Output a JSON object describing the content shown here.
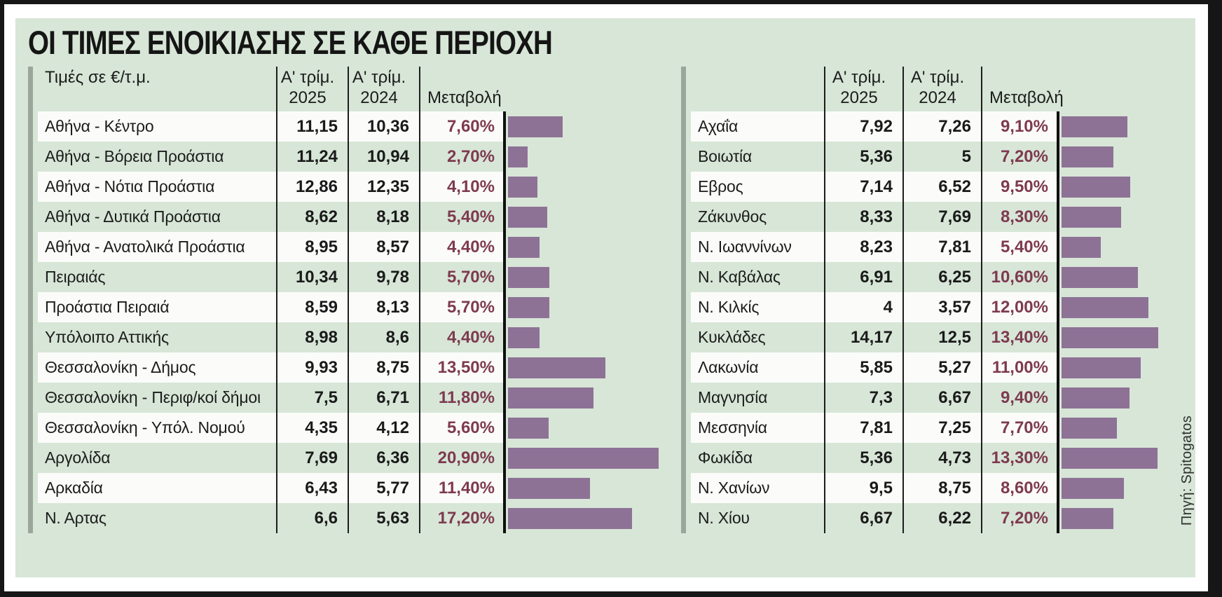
{
  "page": {
    "title": "ΟΙ ΤΙΜΕΣ ΕΝΟΙΚΙΑΣΗΣ ΣΕ ΚΑΘΕ ΠΕΡΙΟΧΗ",
    "units_label": "Τιμές σε €/τ.μ.",
    "col_q2025_line1": "Α' τρίμ.",
    "col_q2025_line2": "2025",
    "col_q2024_line1": "Α' τρίμ.",
    "col_q2024_line2": "2024",
    "col_change": "Μεταβολή",
    "source": "Πηγή: Spitogatos"
  },
  "colors": {
    "panel_green": "#d7e6d7",
    "row_white": "#fbfcfa",
    "bar_mauve": "#8e7296",
    "change_text": "#7e3a50",
    "accent_gray": "#9ba69b",
    "divider_black": "#1d1d1d",
    "frame_black": "#161616"
  },
  "left_table": {
    "rows": [
      {
        "region": "Αθήνα - Κέντρο",
        "q2025": "11,15",
        "q2024": "10,36",
        "change": "7,60%",
        "change_pct": 7.6
      },
      {
        "region": "Αθήνα - Βόρεια Προάστια",
        "q2025": "11,24",
        "q2024": "10,94",
        "change": "2,70%",
        "change_pct": 2.7
      },
      {
        "region": "Αθήνα - Νότια Προάστια",
        "q2025": "12,86",
        "q2024": "12,35",
        "change": "4,10%",
        "change_pct": 4.1
      },
      {
        "region": "Αθήνα - Δυτικά Προάστια",
        "q2025": "8,62",
        "q2024": "8,18",
        "change": "5,40%",
        "change_pct": 5.4
      },
      {
        "region": "Αθήνα - Ανατολικά Προάστια",
        "q2025": "8,95",
        "q2024": "8,57",
        "change": "4,40%",
        "change_pct": 4.4
      },
      {
        "region": "Πειραιάς",
        "q2025": "10,34",
        "q2024": "9,78",
        "change": "5,70%",
        "change_pct": 5.7
      },
      {
        "region": "Προάστια Πειραιά",
        "q2025": "8,59",
        "q2024": "8,13",
        "change": "5,70%",
        "change_pct": 5.7
      },
      {
        "region": "Υπόλοιπο Αττικής",
        "q2025": "8,98",
        "q2024": "8,6",
        "change": "4,40%",
        "change_pct": 4.4
      },
      {
        "region": "Θεσσαλονίκη - Δήμος",
        "q2025": "9,93",
        "q2024": "8,75",
        "change": "13,50%",
        "change_pct": 13.5
      },
      {
        "region": "Θεσσαλονίκη - Περιφ/κοί δήμοι",
        "q2025": "7,5",
        "q2024": "6,71",
        "change": "11,80%",
        "change_pct": 11.8
      },
      {
        "region": "Θεσσαλονίκη - Υπόλ. Νομού",
        "q2025": "4,35",
        "q2024": "4,12",
        "change": "5,60%",
        "change_pct": 5.6
      },
      {
        "region": "Αργολίδα",
        "q2025": "7,69",
        "q2024": "6,36",
        "change": "20,90%",
        "change_pct": 20.9
      },
      {
        "region": "Αρκαδία",
        "q2025": "6,43",
        "q2024": "5,77",
        "change": "11,40%",
        "change_pct": 11.4
      },
      {
        "region": "Ν. Αρτας",
        "q2025": "6,6",
        "q2024": "5,63",
        "change": "17,20%",
        "change_pct": 17.2
      }
    ]
  },
  "right_table": {
    "rows": [
      {
        "region": "Αχαΐα",
        "q2025": "7,92",
        "q2024": "7,26",
        "change": "9,10%",
        "change_pct": 9.1
      },
      {
        "region": "Βοιωτία",
        "q2025": "5,36",
        "q2024": "5",
        "change": "7,20%",
        "change_pct": 7.2
      },
      {
        "region": "Εβρος",
        "q2025": "7,14",
        "q2024": "6,52",
        "change": "9,50%",
        "change_pct": 9.5
      },
      {
        "region": "Ζάκυνθος",
        "q2025": "8,33",
        "q2024": "7,69",
        "change": "8,30%",
        "change_pct": 8.3
      },
      {
        "region": "Ν. Ιωαννίνων",
        "q2025": "8,23",
        "q2024": "7,81",
        "change": "5,40%",
        "change_pct": 5.4
      },
      {
        "region": "Ν. Καβάλας",
        "q2025": "6,91",
        "q2024": "6,25",
        "change": "10,60%",
        "change_pct": 10.6
      },
      {
        "region": "Ν. Κιλκίς",
        "q2025": "4",
        "q2024": "3,57",
        "change": "12,00%",
        "change_pct": 12.0
      },
      {
        "region": "Κυκλάδες",
        "q2025": "14,17",
        "q2024": "12,5",
        "change": "13,40%",
        "change_pct": 13.4
      },
      {
        "region": "Λακωνία",
        "q2025": "5,85",
        "q2024": "5,27",
        "change": "11,00%",
        "change_pct": 11.0
      },
      {
        "region": "Μαγνησία",
        "q2025": "7,3",
        "q2024": "6,67",
        "change": "9,40%",
        "change_pct": 9.4
      },
      {
        "region": "Μεσσηνία",
        "q2025": "7,81",
        "q2024": "7,25",
        "change": "7,70%",
        "change_pct": 7.7
      },
      {
        "region": "Φωκίδα",
        "q2025": "5,36",
        "q2024": "4,73",
        "change": "13,30%",
        "change_pct": 13.3
      },
      {
        "region": "Ν. Χανίων",
        "q2025": "9,5",
        "q2024": "8,75",
        "change": "8,60%",
        "change_pct": 8.6
      },
      {
        "region": "Ν. Χίου",
        "q2025": "6,67",
        "q2024": "6,22",
        "change": "7,20%",
        "change_pct": 7.2
      }
    ]
  },
  "chart_data": [
    {
      "type": "bar",
      "orientation": "horizontal",
      "title": "ΟΙ ΤΙΜΕΣ ΕΝΟΙΚΙΑΣΗΣ ΣΕ ΚΑΘΕ ΠΕΡΙΟΧΗ (αριστερός πίνακας)",
      "units": "Τιμές σε €/τ.μ.",
      "categories": [
        "Αθήνα - Κέντρο",
        "Αθήνα - Βόρεια Προάστια",
        "Αθήνα - Νότια Προάστια",
        "Αθήνα - Δυτικά Προάστια",
        "Αθήνα - Ανατολικά Προάστια",
        "Πειραιάς",
        "Προάστια Πειραιά",
        "Υπόλοιπο Αττικής",
        "Θεσσαλονίκη - Δήμος",
        "Θεσσαλονίκη - Περιφ/κοί δήμοι",
        "Θεσσαλονίκη - Υπόλ. Νομού",
        "Αργολίδα",
        "Αρκαδία",
        "Ν. Αρτας"
      ],
      "series": [
        {
          "name": "Α' τρίμ. 2025",
          "values": [
            11.15,
            11.24,
            12.86,
            8.62,
            8.95,
            10.34,
            8.59,
            8.98,
            9.93,
            7.5,
            4.35,
            7.69,
            6.43,
            6.6
          ]
        },
        {
          "name": "Α' τρίμ. 2024",
          "values": [
            10.36,
            10.94,
            12.35,
            8.18,
            8.57,
            9.78,
            8.13,
            8.6,
            8.75,
            6.71,
            4.12,
            6.36,
            5.77,
            5.63
          ]
        },
        {
          "name": "Μεταβολή (%)",
          "values": [
            7.6,
            2.7,
            4.1,
            5.4,
            4.4,
            5.7,
            5.7,
            4.4,
            13.5,
            11.8,
            5.6,
            20.9,
            11.4,
            17.2
          ]
        }
      ],
      "bar_series": "Μεταβολή (%)",
      "legend": "none",
      "grid": false,
      "source": "Πηγή: Spitogatos"
    },
    {
      "type": "bar",
      "orientation": "horizontal",
      "title": "ΟΙ ΤΙΜΕΣ ΕΝΟΙΚΙΑΣΗΣ ΣΕ ΚΑΘΕ ΠΕΡΙΟΧΗ (δεξιός πίνακας)",
      "units": "Τιμές σε €/τ.μ.",
      "categories": [
        "Αχαΐα",
        "Βοιωτία",
        "Εβρος",
        "Ζάκυνθος",
        "Ν. Ιωαννίνων",
        "Ν. Καβάλας",
        "Ν. Κιλκίς",
        "Κυκλάδες",
        "Λακωνία",
        "Μαγνησία",
        "Μεσσηνία",
        "Φωκίδα",
        "Ν. Χανίων",
        "Ν. Χίου"
      ],
      "series": [
        {
          "name": "Α' τρίμ. 2025",
          "values": [
            7.92,
            5.36,
            7.14,
            8.33,
            8.23,
            6.91,
            4,
            14.17,
            5.85,
            7.3,
            7.81,
            5.36,
            9.5,
            6.67
          ]
        },
        {
          "name": "Α' τρίμ. 2024",
          "values": [
            7.26,
            5,
            6.52,
            7.69,
            7.81,
            6.25,
            3.57,
            12.5,
            5.27,
            6.67,
            7.25,
            4.73,
            8.75,
            6.22
          ]
        },
        {
          "name": "Μεταβολή (%)",
          "values": [
            9.1,
            7.2,
            9.5,
            8.3,
            5.4,
            10.6,
            12.0,
            13.4,
            11.0,
            9.4,
            7.7,
            13.3,
            8.6,
            7.2
          ]
        }
      ],
      "bar_series": "Μεταβολή (%)",
      "legend": "none",
      "grid": false,
      "source": "Πηγή: Spitogatos"
    }
  ]
}
